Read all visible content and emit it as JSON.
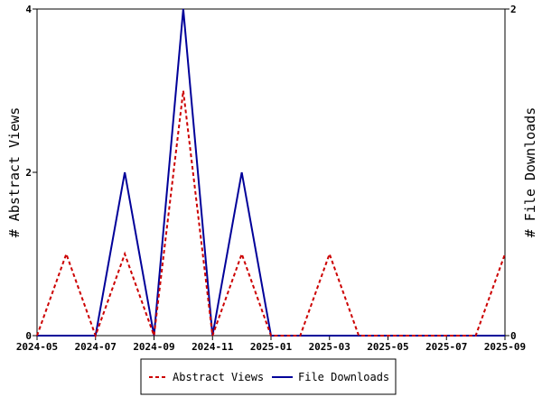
{
  "chart_data": {
    "type": "line",
    "title": "",
    "xlabel": "",
    "ylabel": "# Abstract Views",
    "y2label": "# File Downloads",
    "x_ticks": [
      "2024-05",
      "2024-07",
      "2024-09",
      "2024-11",
      "2025-01",
      "2025-03",
      "2025-05",
      "2025-07",
      "2025-09"
    ],
    "x": [
      "2024-05",
      "2024-06",
      "2024-07",
      "2024-08",
      "2024-09",
      "2024-10",
      "2024-11",
      "2024-12",
      "2025-01",
      "2025-02",
      "2025-03",
      "2025-04",
      "2025-05",
      "2025-06",
      "2025-07",
      "2025-08",
      "2025-09"
    ],
    "ylim": [
      0,
      4
    ],
    "y_ticks": [
      "0",
      "2",
      "4"
    ],
    "y2lim": [
      0,
      2
    ],
    "y2_ticks": [
      "0",
      "2"
    ],
    "grid": false,
    "legend_position": "bottom",
    "series": [
      {
        "name": "Abstract Views",
        "axis": "left",
        "color": "#cc0000",
        "style": "dashed",
        "values": [
          0,
          1,
          0,
          1,
          0,
          3,
          0,
          1,
          0,
          0,
          1,
          0,
          0,
          0,
          0,
          0,
          1
        ]
      },
      {
        "name": "File Downloads",
        "axis": "right",
        "color": "#000099",
        "style": "solid",
        "values": [
          0,
          0,
          0,
          1,
          0,
          2,
          0,
          1,
          0,
          0,
          0,
          0,
          0,
          0,
          0,
          0,
          0
        ]
      }
    ]
  }
}
